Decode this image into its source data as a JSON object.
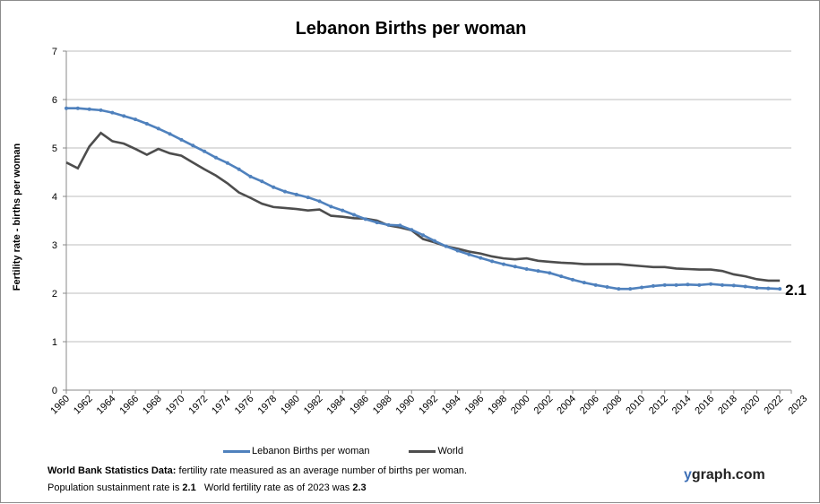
{
  "chart_data": {
    "type": "line",
    "title": "Lebanon Births per woman",
    "ylabel": "Fertility rate  - births per woman",
    "xlabel": "",
    "ylim": [
      0,
      7
    ],
    "xlim": [
      1960,
      2023
    ],
    "yticks": [
      "0",
      "1",
      "2",
      "3",
      "4",
      "5",
      "6",
      "7"
    ],
    "xticks": [
      "1960",
      "1962",
      "1964",
      "1966",
      "1968",
      "1970",
      "1972",
      "1974",
      "1976",
      "1978",
      "1980",
      "1982",
      "1984",
      "1986",
      "1988",
      "1990",
      "1992",
      "1994",
      "1996",
      "1998",
      "2000",
      "2002",
      "2004",
      "2006",
      "2008",
      "2010",
      "2012",
      "2014",
      "2016",
      "2018",
      "2020",
      "2022",
      "2023"
    ],
    "grid": true,
    "legend_position": "bottom",
    "x_start": 1960,
    "series": [
      {
        "name": "Lebanon Births per woman",
        "color": "#4f81bd",
        "markers": true,
        "values": [
          5.82,
          5.82,
          5.8,
          5.78,
          5.73,
          5.66,
          5.59,
          5.5,
          5.4,
          5.29,
          5.17,
          5.05,
          4.93,
          4.8,
          4.69,
          4.56,
          4.41,
          4.31,
          4.19,
          4.1,
          4.04,
          3.98,
          3.9,
          3.79,
          3.71,
          3.62,
          3.53,
          3.46,
          3.41,
          3.4,
          3.31,
          3.2,
          3.08,
          2.97,
          2.88,
          2.8,
          2.73,
          2.66,
          2.6,
          2.55,
          2.5,
          2.46,
          2.42,
          2.35,
          2.28,
          2.22,
          2.17,
          2.13,
          2.09,
          2.09,
          2.12,
          2.15,
          2.17,
          2.17,
          2.18,
          2.17,
          2.19,
          2.17,
          2.16,
          2.14,
          2.11,
          2.1,
          2.09
        ]
      },
      {
        "name": "World",
        "color": "#4d4d4d",
        "markers": false,
        "values": [
          4.7,
          4.58,
          5.03,
          5.31,
          5.14,
          5.09,
          4.98,
          4.86,
          4.98,
          4.89,
          4.84,
          4.7,
          4.56,
          4.43,
          4.27,
          4.08,
          3.97,
          3.85,
          3.78,
          3.76,
          3.74,
          3.71,
          3.73,
          3.6,
          3.58,
          3.55,
          3.54,
          3.5,
          3.4,
          3.36,
          3.3,
          3.12,
          3.05,
          2.97,
          2.92,
          2.86,
          2.82,
          2.76,
          2.72,
          2.7,
          2.72,
          2.67,
          2.65,
          2.63,
          2.62,
          2.6,
          2.6,
          2.6,
          2.6,
          2.58,
          2.56,
          2.54,
          2.54,
          2.51,
          2.5,
          2.49,
          2.49,
          2.46,
          2.39,
          2.35,
          2.29,
          2.26,
          2.26
        ]
      }
    ],
    "annotation": "2.1"
  },
  "notes": {
    "line1_bold": "World Bank Statistics Data:",
    "line1_rest": " fertility rate measured as an average number  of births per woman.",
    "line2_a": "Population sustainment rate is ",
    "line2_b": "2.1",
    "line2_c": "   World fertility rate as of 2023 was ",
    "line2_d": "2.3"
  },
  "brand": {
    "y": "y",
    "rest": "graph.com"
  }
}
